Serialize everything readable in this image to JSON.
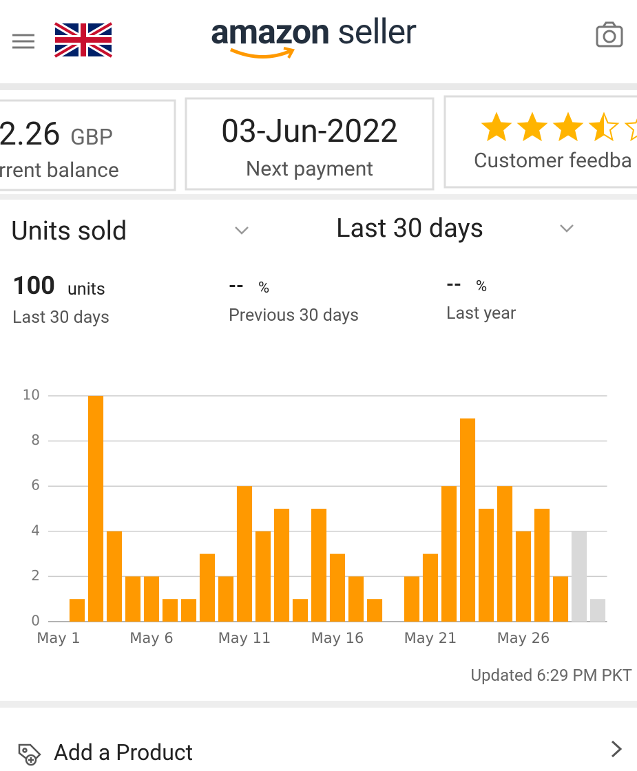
{
  "header": {
    "logo_bold": "amazon",
    "logo_light": "seller"
  },
  "cards": [
    {
      "value": "2.26",
      "unit": "GBP",
      "label": "rrent balance"
    },
    {
      "value": "03-Jun-2022",
      "label": "Next payment"
    },
    {
      "rating": 3.5,
      "label": "Customer feedba"
    }
  ],
  "selectors": {
    "metric": "Units sold",
    "period": "Last 30 days"
  },
  "stats": [
    {
      "value": "100",
      "unit": "units",
      "label": "Last 30 days"
    },
    {
      "value": "--",
      "unit": "%",
      "label": "Previous 30 days"
    },
    {
      "value": "--",
      "unit": "%",
      "label": "Last year"
    }
  ],
  "chart_data": {
    "type": "bar",
    "categories": [
      "May 1",
      null,
      null,
      null,
      null,
      "May 6",
      null,
      null,
      null,
      null,
      "May 11",
      null,
      null,
      null,
      null,
      "May 16",
      null,
      null,
      null,
      null,
      "May 21",
      null,
      null,
      null,
      null,
      "May 26",
      null,
      null,
      null,
      null
    ],
    "values": [
      0,
      1,
      10,
      4,
      2,
      2,
      1,
      1,
      3,
      2,
      6,
      4,
      5,
      1,
      5,
      3,
      2,
      1,
      0,
      2,
      3,
      6,
      9,
      5,
      6,
      4,
      5,
      2,
      4,
      1
    ],
    "colors": [
      "#ff9900",
      "#ff9900",
      "#ff9900",
      "#ff9900",
      "#ff9900",
      "#ff9900",
      "#ff9900",
      "#ff9900",
      "#ff9900",
      "#ff9900",
      "#ff9900",
      "#ff9900",
      "#ff9900",
      "#ff9900",
      "#ff9900",
      "#ff9900",
      "#ff9900",
      "#ff9900",
      "#ff9900",
      "#ff9900",
      "#ff9900",
      "#ff9900",
      "#ff9900",
      "#ff9900",
      "#ff9900",
      "#ff9900",
      "#ff9900",
      "#ff9900",
      "#d9d9d9",
      "#d9d9d9"
    ],
    "ylim": [
      0,
      10
    ],
    "yticks": [
      0,
      2,
      4,
      6,
      8,
      10
    ],
    "grid": true
  },
  "updated": "Updated 6:29 PM PKT",
  "action": "Add a Product"
}
